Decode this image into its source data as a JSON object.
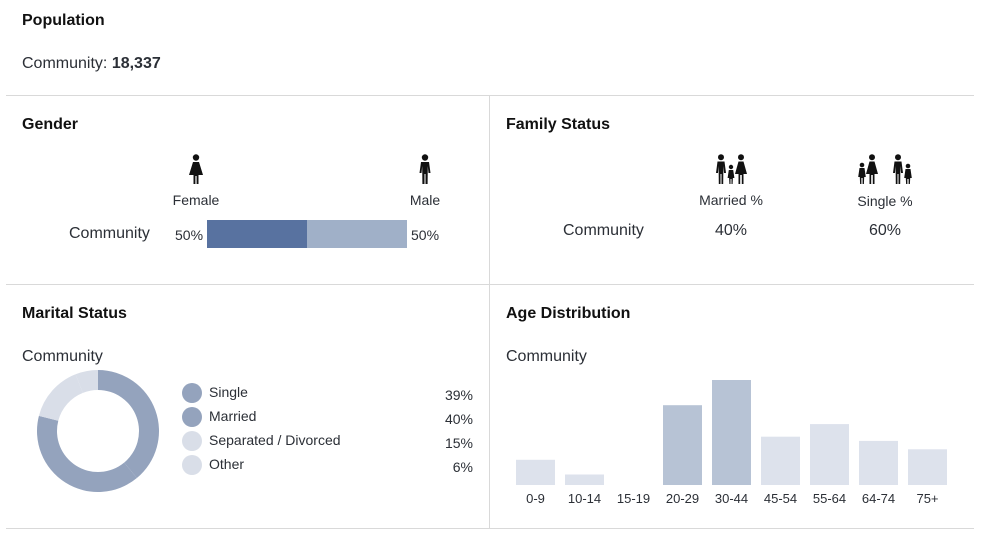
{
  "population": {
    "title": "Population",
    "community_label": "Community:",
    "community_value": "18,337"
  },
  "gender": {
    "title": "Gender",
    "female_label": "Female",
    "male_label": "Male",
    "row_label": "Community",
    "female_pct": "50%",
    "male_pct": "50%",
    "female_value": 50,
    "male_value": 50,
    "colors": {
      "female": "#5872a0",
      "male": "#a0b0c8"
    }
  },
  "family": {
    "title": "Family Status",
    "married_label": "Married %",
    "single_label": "Single %",
    "row_label": "Community",
    "married_pct": "40%",
    "single_pct": "60%"
  },
  "marital": {
    "title": "Marital Status",
    "community_label": "Community",
    "items": [
      {
        "label": "Single",
        "pct": "39%",
        "color": "#94a3bd"
      },
      {
        "label": "Married",
        "pct": "40%",
        "color": "#94a3bd"
      },
      {
        "label": "Separated / Divorced",
        "pct": "15%",
        "color": "#d9dee8"
      },
      {
        "label": "Other",
        "pct": "6%",
        "color": "#d9dee8"
      }
    ]
  },
  "age": {
    "title": "Age Distribution",
    "community_label": "Community"
  },
  "chart_data": [
    {
      "type": "pie",
      "title": "Marital Status",
      "categories": [
        "Single",
        "Married",
        "Separated / Divorced",
        "Other"
      ],
      "values": [
        39,
        40,
        15,
        6
      ]
    },
    {
      "type": "bar",
      "title": "Age Distribution",
      "xlabel": "",
      "ylabel": "",
      "categories": [
        "0-9",
        "10-14",
        "15-19",
        "20-29",
        "30-44",
        "45-54",
        "55-64",
        "64-74",
        "75+"
      ],
      "values": [
        6,
        2.5,
        0,
        19,
        25,
        11.5,
        14.5,
        10.5,
        8.5
      ],
      "ylim": [
        0,
        25
      ],
      "highlight_categories": [
        "20-29",
        "30-44"
      ],
      "colors": {
        "highlight": "#b7c3d5",
        "normal": "#dde2ec"
      }
    }
  ]
}
